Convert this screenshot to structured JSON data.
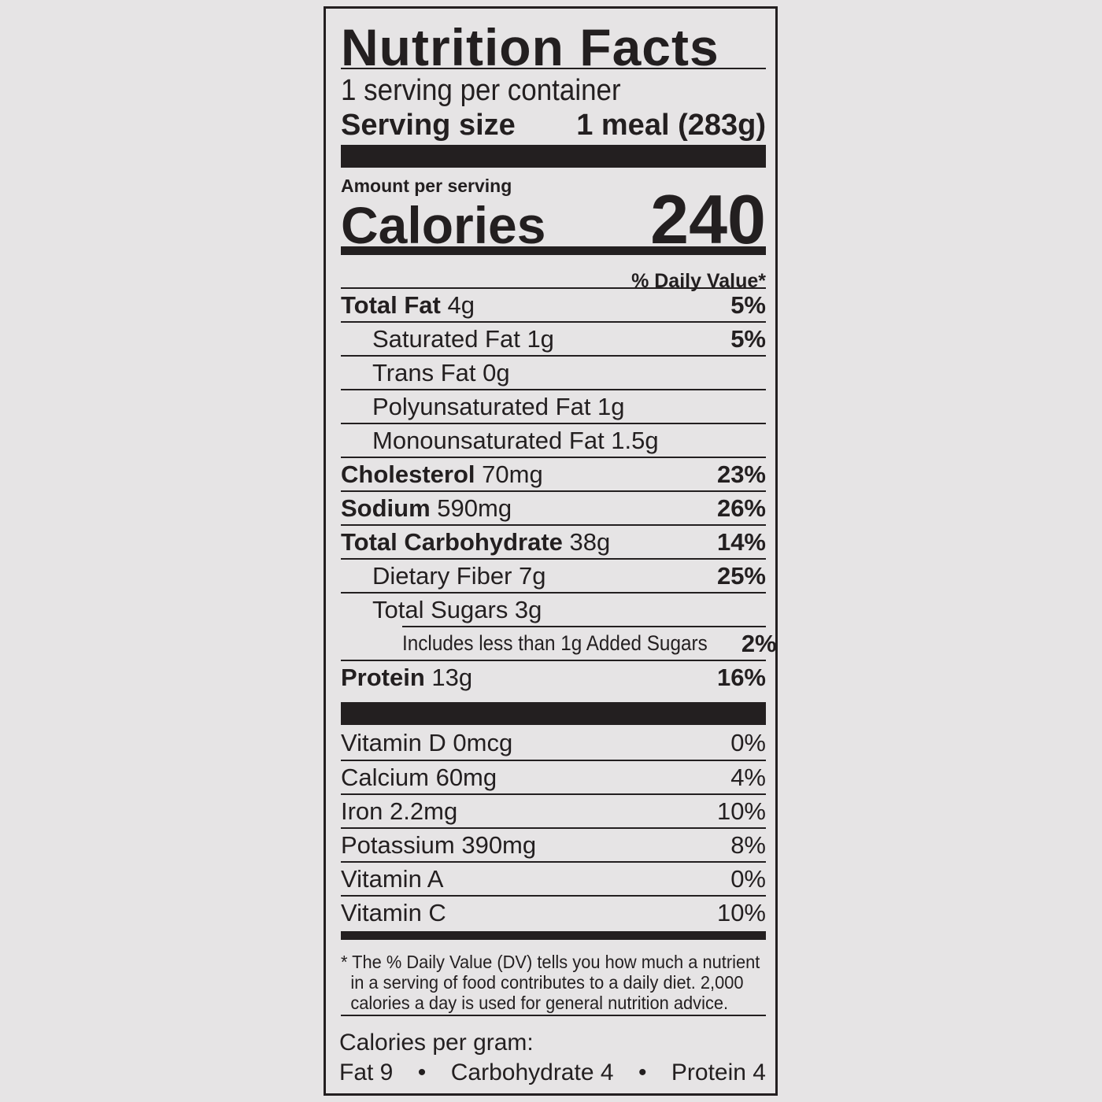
{
  "title": "Nutrition Facts",
  "servings_per_container": "1 serving per container",
  "serving_size_label": "Serving size",
  "serving_size_value": "1 meal (283g)",
  "amount_per_serving": "Amount per serving",
  "calories_label": "Calories",
  "calories_value": "240",
  "daily_value_header": "% Daily Value*",
  "nutrients": [
    {
      "name": "Total Fat",
      "amount": "4g",
      "dv": "5%",
      "bold": true
    },
    {
      "name": "Saturated Fat 1g",
      "amount": "",
      "dv": "5%"
    },
    {
      "name": "Trans Fat 0g",
      "amount": "",
      "dv": ""
    },
    {
      "name": "Polyunsaturated Fat 1g",
      "amount": "",
      "dv": ""
    },
    {
      "name": "Monounsaturated Fat 1.5g",
      "amount": "",
      "dv": ""
    },
    {
      "name": "Cholesterol",
      "amount": "70mg",
      "dv": "23%",
      "bold": true
    },
    {
      "name": "Sodium",
      "amount": "590mg",
      "dv": "26%",
      "bold": true
    },
    {
      "name": "Total Carbohydrate",
      "amount": "38g",
      "dv": "14%",
      "bold": true
    },
    {
      "name": "Dietary Fiber 7g",
      "amount": "",
      "dv": "25%"
    },
    {
      "name": "Total Sugars 3g",
      "amount": "",
      "dv": ""
    },
    {
      "name": "Includes less than 1g Added Sugars",
      "amount": "",
      "dv": "2%"
    },
    {
      "name": "Protein",
      "amount": "13g",
      "dv": "16%",
      "bold": true
    }
  ],
  "vitamins": [
    {
      "name": "Vitamin D 0mcg",
      "dv": "0%"
    },
    {
      "name": "Calcium 60mg",
      "dv": "4%"
    },
    {
      "name": "Iron 2.2mg",
      "dv": "10%"
    },
    {
      "name": "Potassium 390mg",
      "dv": "8%"
    },
    {
      "name": "Vitamin A",
      "dv": "0%"
    },
    {
      "name": "Vitamin C",
      "dv": "10%"
    }
  ],
  "footnote": {
    "line1": "* The % Daily Value (DV) tells you how much a nutrient",
    "line2": "in a serving of food contributes to a daily diet. 2,000",
    "line3": "calories a day is used for general nutrition advice."
  },
  "calories_per_gram": {
    "label": "Calories per gram:",
    "fat": "Fat 9",
    "bullet": "•",
    "carb": "Carbohydrate 4",
    "protein": "Protein 4"
  },
  "colors": {
    "ink": "#231f20",
    "background": "#e6e4e5"
  }
}
